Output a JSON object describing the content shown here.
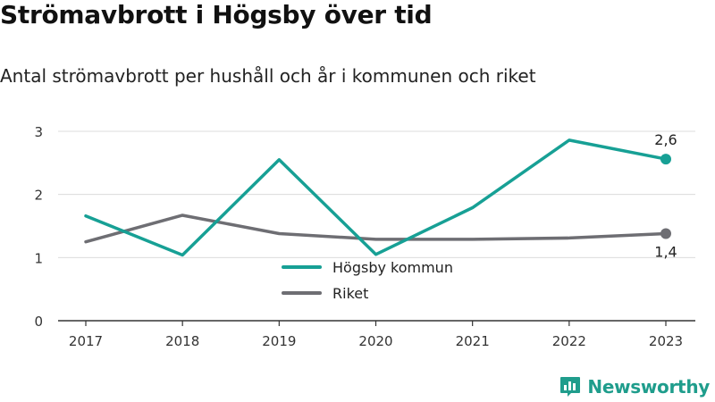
{
  "title": "Strömavbrott i Högsby över tid",
  "subtitle": "Antal strömavbrott per hushåll och år i kommunen och riket",
  "brand": {
    "name": "Newsworthy",
    "icon": "bar-chart-logo-icon"
  },
  "colors": {
    "hogsby": "#17a095",
    "riket": "#6e6e73",
    "axis": "#333333",
    "grid": "#d9d9d9",
    "brand": "#1f9d8c"
  },
  "chart_data": {
    "type": "line",
    "categories": [
      "2017",
      "2018",
      "2019",
      "2020",
      "2021",
      "2022",
      "2023"
    ],
    "series": [
      {
        "name": "Högsby kommun",
        "values": [
          1.66,
          1.04,
          2.55,
          1.05,
          1.79,
          2.86,
          2.56
        ],
        "color": "#17a095",
        "end_label": "2,6"
      },
      {
        "name": "Riket",
        "values": [
          1.25,
          1.67,
          1.38,
          1.29,
          1.29,
          1.31,
          1.38
        ],
        "color": "#6e6e73",
        "end_label": "1,4"
      }
    ],
    "yticks": [
      "0",
      "1",
      "2",
      "3"
    ],
    "ylim": [
      0,
      3
    ],
    "grid": true,
    "legend": "bottom-center"
  }
}
